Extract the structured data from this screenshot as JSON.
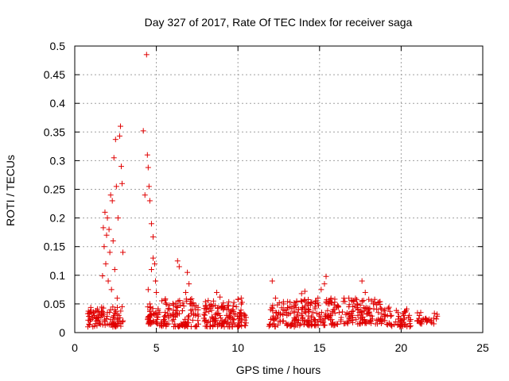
{
  "chart_data": {
    "type": "scatter",
    "title": "Day 327 of 2017, Rate Of TEC Index for receiver saga",
    "xlabel": "GPS time / hours",
    "ylabel": "ROTI / TECUs",
    "xlim": [
      0,
      25
    ],
    "ylim": [
      0,
      0.5
    ],
    "xticks": [
      0,
      5,
      10,
      15,
      20,
      25
    ],
    "yticks": [
      0,
      0.05,
      0.1,
      0.15,
      0.2,
      0.25,
      0.3,
      0.35,
      0.4,
      0.45,
      0.5
    ],
    "grid": true,
    "marker": "+",
    "color": "#e00000",
    "series": [
      {
        "name": "ROTI",
        "points": [
          [
            0.8,
            0.033
          ],
          [
            0.9,
            0.028
          ],
          [
            1.0,
            0.035
          ],
          [
            1.1,
            0.025
          ],
          [
            1.2,
            0.03
          ],
          [
            1.3,
            0.038
          ],
          [
            1.4,
            0.022
          ],
          [
            1.5,
            0.031
          ],
          [
            1.6,
            0.027
          ],
          [
            1.7,
            0.099
          ],
          [
            1.75,
            0.183
          ],
          [
            1.8,
            0.15
          ],
          [
            1.85,
            0.21
          ],
          [
            1.9,
            0.12
          ],
          [
            1.95,
            0.17
          ],
          [
            2.0,
            0.2
          ],
          [
            2.05,
            0.09
          ],
          [
            2.1,
            0.18
          ],
          [
            2.15,
            0.14
          ],
          [
            2.2,
            0.24
          ],
          [
            2.25,
            0.075
          ],
          [
            2.3,
            0.23
          ],
          [
            2.35,
            0.16
          ],
          [
            2.4,
            0.305
          ],
          [
            2.45,
            0.11
          ],
          [
            2.5,
            0.337
          ],
          [
            2.55,
            0.255
          ],
          [
            2.6,
            0.06
          ],
          [
            2.65,
            0.2
          ],
          [
            2.7,
            0.03
          ],
          [
            2.75,
            0.343
          ],
          [
            2.8,
            0.36
          ],
          [
            2.85,
            0.29
          ],
          [
            2.9,
            0.26
          ],
          [
            2.95,
            0.14
          ],
          [
            2.0,
            0.035
          ],
          [
            2.2,
            0.04
          ],
          [
            2.4,
            0.03
          ],
          [
            2.6,
            0.032
          ],
          [
            2.9,
            0.045
          ],
          [
            4.2,
            0.352
          ],
          [
            4.3,
            0.24
          ],
          [
            4.4,
            0.485
          ],
          [
            4.45,
            0.31
          ],
          [
            4.5,
            0.288
          ],
          [
            4.55,
            0.255
          ],
          [
            4.6,
            0.23
          ],
          [
            4.7,
            0.19
          ],
          [
            4.8,
            0.167
          ],
          [
            4.5,
            0.075
          ],
          [
            4.6,
            0.05
          ],
          [
            4.7,
            0.11
          ],
          [
            4.8,
            0.13
          ],
          [
            4.9,
            0.12
          ],
          [
            4.95,
            0.09
          ],
          [
            5.0,
            0.07
          ],
          [
            4.6,
            0.03
          ],
          [
            5.2,
            0.035
          ],
          [
            5.5,
            0.028
          ],
          [
            5.8,
            0.04
          ],
          [
            6.0,
            0.032
          ],
          [
            6.2,
            0.045
          ],
          [
            6.3,
            0.125
          ],
          [
            6.4,
            0.115
          ],
          [
            6.6,
            0.038
          ],
          [
            6.8,
            0.07
          ],
          [
            6.9,
            0.105
          ],
          [
            7.0,
            0.085
          ],
          [
            7.1,
            0.05
          ],
          [
            7.2,
            0.04
          ],
          [
            7.4,
            0.03
          ],
          [
            8.0,
            0.035
          ],
          [
            8.3,
            0.042
          ],
          [
            8.5,
            0.055
          ],
          [
            8.7,
            0.07
          ],
          [
            8.9,
            0.062
          ],
          [
            9.1,
            0.04
          ],
          [
            9.3,
            0.03
          ],
          [
            9.6,
            0.038
          ],
          [
            9.9,
            0.045
          ],
          [
            10.1,
            0.035
          ],
          [
            10.2,
            0.06
          ],
          [
            10.4,
            0.03
          ],
          [
            12.0,
            0.04
          ],
          [
            12.1,
            0.09
          ],
          [
            12.3,
            0.06
          ],
          [
            12.5,
            0.035
          ],
          [
            12.8,
            0.05
          ],
          [
            13.0,
            0.03
          ],
          [
            13.3,
            0.045
          ],
          [
            13.6,
            0.055
          ],
          [
            13.9,
            0.068
          ],
          [
            14.1,
            0.072
          ],
          [
            14.3,
            0.04
          ],
          [
            14.6,
            0.035
          ],
          [
            14.9,
            0.06
          ],
          [
            15.1,
            0.075
          ],
          [
            15.3,
            0.085
          ],
          [
            15.4,
            0.098
          ],
          [
            15.6,
            0.05
          ],
          [
            15.9,
            0.04
          ],
          [
            16.2,
            0.035
          ],
          [
            16.5,
            0.06
          ],
          [
            16.8,
            0.045
          ],
          [
            17.0,
            0.03
          ],
          [
            17.3,
            0.05
          ],
          [
            17.6,
            0.09
          ],
          [
            17.8,
            0.07
          ],
          [
            18.0,
            0.04
          ],
          [
            18.3,
            0.05
          ],
          [
            18.6,
            0.035
          ],
          [
            19.0,
            0.04
          ],
          [
            19.4,
            0.03
          ],
          [
            19.8,
            0.035
          ],
          [
            20.2,
            0.025
          ],
          [
            20.5,
            0.03
          ],
          [
            21.2,
            0.035
          ],
          [
            21.3,
            0.022
          ],
          [
            22.0,
            0.025
          ],
          [
            22.2,
            0.032
          ]
        ]
      }
    ],
    "dense_bands": [
      {
        "x": [
          0.8,
          3.0
        ],
        "y": [
          0.01,
          0.045
        ],
        "count": 90
      },
      {
        "x": [
          4.4,
          5.2
        ],
        "y": [
          0.015,
          0.05
        ],
        "count": 40
      },
      {
        "x": [
          5.2,
          7.6
        ],
        "y": [
          0.01,
          0.06
        ],
        "count": 110
      },
      {
        "x": [
          7.9,
          10.5
        ],
        "y": [
          0.01,
          0.06
        ],
        "count": 140
      },
      {
        "x": [
          11.9,
          13.5
        ],
        "y": [
          0.01,
          0.055
        ],
        "count": 70
      },
      {
        "x": [
          13.5,
          16.2
        ],
        "y": [
          0.012,
          0.06
        ],
        "count": 140
      },
      {
        "x": [
          16.2,
          18.8
        ],
        "y": [
          0.015,
          0.06
        ],
        "count": 110
      },
      {
        "x": [
          18.8,
          20.6
        ],
        "y": [
          0.01,
          0.045
        ],
        "count": 55
      },
      {
        "x": [
          20.9,
          22.3
        ],
        "y": [
          0.015,
          0.035
        ],
        "count": 25
      }
    ]
  }
}
